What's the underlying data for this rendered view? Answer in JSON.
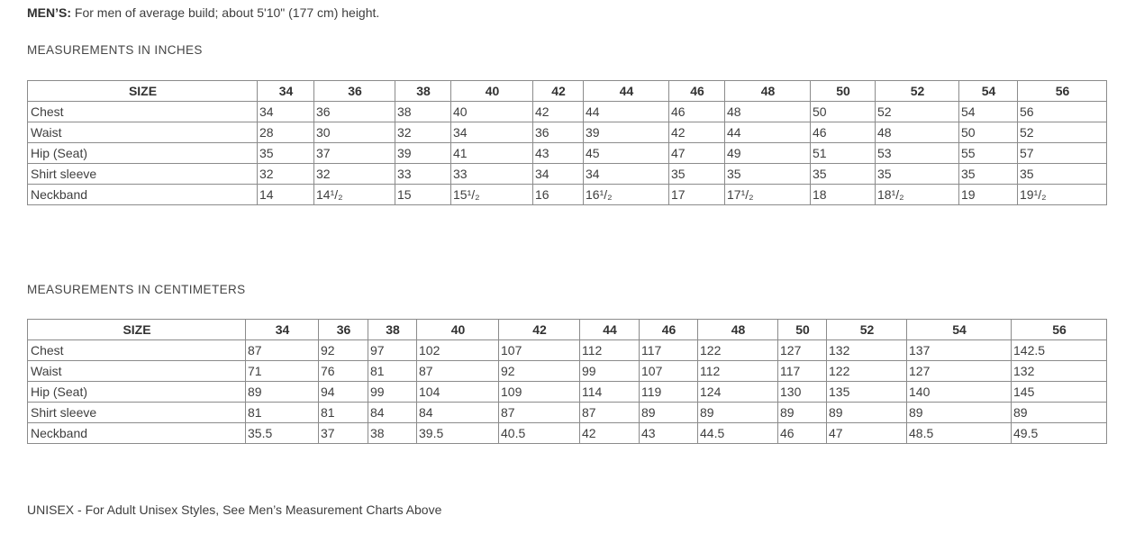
{
  "page": {
    "intro_bold": "MEN’S:",
    "intro_rest": " For men of average build; about 5'10\" (177 cm) height.",
    "inches_heading": "MEASUREMENTS IN INCHES",
    "cm_heading": "MEASUREMENTS IN CENTIMETERS",
    "footer_note": "UNISEX - For Adult Unisex Styles, See Men’s Measurement Charts Above"
  },
  "tables": {
    "size_header": "SIZE",
    "sizes": [
      "34",
      "36",
      "38",
      "40",
      "42",
      "44",
      "46",
      "48",
      "50",
      "52",
      "54",
      "56"
    ],
    "inches": {
      "rows": [
        {
          "label": "Chest",
          "values": [
            "34",
            "36",
            "38",
            "40",
            "42",
            "44",
            "46",
            "48",
            "50",
            "52",
            "54",
            "56"
          ]
        },
        {
          "label": "Waist",
          "values": [
            "28",
            "30",
            "32",
            "34",
            "36",
            "39",
            "42",
            "44",
            "46",
            "48",
            "50",
            "52"
          ]
        },
        {
          "label": "Hip (Seat)",
          "values": [
            "35",
            "37",
            "39",
            "41",
            "43",
            "45",
            "47",
            "49",
            "51",
            "53",
            "55",
            "57"
          ]
        },
        {
          "label": "Shirt sleeve",
          "values": [
            "32",
            "32",
            "33",
            "33",
            "34",
            "34",
            "35",
            "35",
            "35",
            "35",
            "35",
            "35"
          ]
        },
        {
          "label": "Neckband",
          "values": [
            "14",
            "14¹/₂",
            "15",
            "15¹/₂",
            "16",
            "16¹/₂",
            "17",
            "17¹/₂",
            "18",
            "18¹/₂",
            "19",
            "19¹/₂"
          ]
        }
      ]
    },
    "centimeters": {
      "rows": [
        {
          "label": "Chest",
          "values": [
            "87",
            "92",
            "97",
            "102",
            "107",
            "112",
            "117",
            "122",
            "127",
            "132",
            "137",
            "142.5"
          ]
        },
        {
          "label": "Waist",
          "values": [
            "71",
            "76",
            "81",
            "87",
            "92",
            "99",
            "107",
            "112",
            "117",
            "122",
            "127",
            "132"
          ]
        },
        {
          "label": "Hip (Seat)",
          "values": [
            "89",
            "94",
            "99",
            "104",
            "109",
            "114",
            "119",
            "124",
            "130",
            "135",
            "140",
            "145"
          ]
        },
        {
          "label": "Shirt sleeve",
          "values": [
            "81",
            "81",
            "84",
            "84",
            "87",
            "87",
            "89",
            "89",
            "89",
            "89",
            "89",
            "89"
          ]
        },
        {
          "label": "Neckband",
          "values": [
            "35.5",
            "37",
            "38",
            "39.5",
            "40.5",
            "42",
            "43",
            "44.5",
            "46",
            "47",
            "48.5",
            "49.5"
          ]
        }
      ]
    }
  }
}
